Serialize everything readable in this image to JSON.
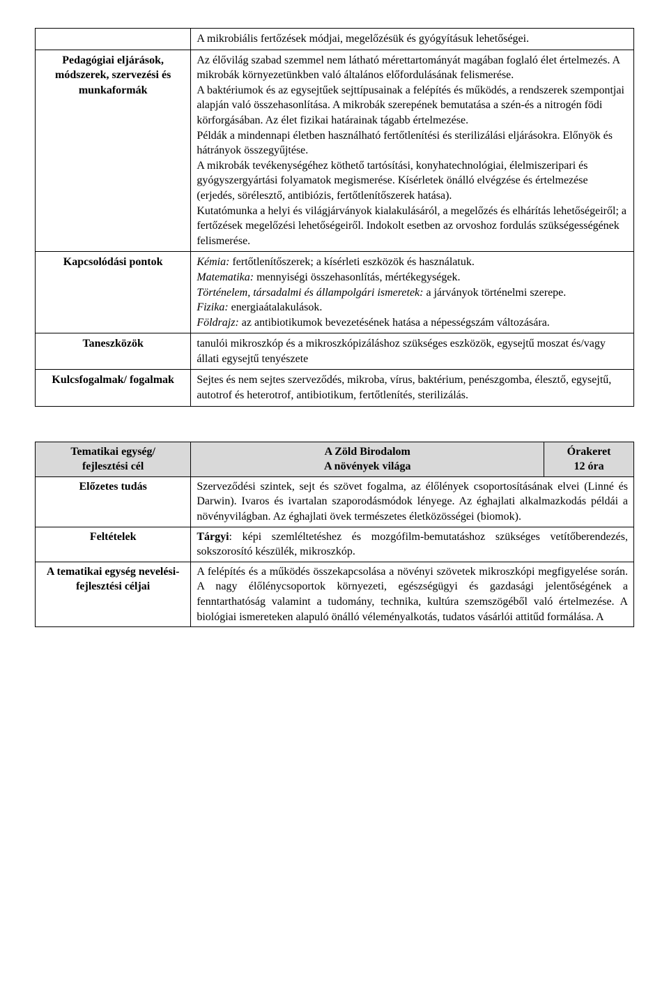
{
  "table1": {
    "row0": {
      "content": "A mikrobiális fertőzések módjai, megelőzésük és gyógyításuk lehetőségei."
    },
    "row1": {
      "label": "Pedagógiai eljárások, módszerek, szervezési és munkaformák",
      "p1": "Az élővilág szabad szemmel nem látható mérettartományát magában foglaló élet értelmezés. A mikrobák környezetünkben való általános előfordulásának felismerése.",
      "p2": "A baktériumok és az egysejtűek sejttípusainak a felépítés és működés, a rendszerek szempontjai alapján való összehasonlítása. A mikrobák szerepének bemutatása a szén-és a nitrogén födi körforgásában. Az élet fizikai határainak tágabb értelmezése.",
      "p3": "Példák a mindennapi életben használható fertőtlenítési és sterilizálási eljárásokra. Előnyök és hátrányok összegyűjtése.",
      "p4": "A mikrobák tevékenységéhez köthető tartósítási, konyhatechnológiai, élelmiszeripari és gyógyszergyártási folyamatok megismerése. Kísérletek önálló elvégzése és értelmezése (erjedés, sörélesztő, antibiózis, fertőtlenítőszerek hatása).",
      "p5": "Kutatómunka a helyi és világjárványok kialakulásáról, a megelőzés és elhárítás lehetőségeiről; a fertőzések megelőzési lehetőségeiről. Indokolt esetben az orvoshoz fordulás szükségességének felismerése."
    },
    "row2": {
      "label": "Kapcsolódási pontok",
      "kemia_lbl": "Kémia:",
      "kemia_txt": " fertőtlenítőszerek; a kísérleti eszközök és használatuk.",
      "mat_lbl": "Matematika:",
      "mat_txt": " mennyiségi összehasonlítás, mértékegységek.",
      "tort_lbl": "Történelem, társadalmi és állampolgári ismeretek:",
      "tort_txt": " a járványok történelmi szerepe.",
      "fiz_lbl": "Fizika:",
      "fiz_txt": " energiaátalakulások.",
      "foldr_lbl": "Földrajz:",
      "foldr_txt": " az antibiotikumok bevezetésének hatása a népességszám változására."
    },
    "row3": {
      "label": "Taneszközök",
      "content": "tanulói mikroszkóp és a mikroszkópizáláshoz szükséges eszközök, egysejtű moszat és/vagy állati egysejtű tenyészete"
    },
    "row4": {
      "label": "Kulcsfogalmak/ fogalmak",
      "content": "Sejtes és nem sejtes szerveződés, mikroba, vírus, baktérium, penészgomba, élesztő, egysejtű, autotrof és heterotrof, antibiotikum, fertőtlenítés, sterilizálás."
    }
  },
  "table2": {
    "header": {
      "col1a": "Tematikai egység/",
      "col1b": "fejlesztési cél",
      "col2a": "A Zöld Birodalom",
      "col2b": "A növények világa",
      "col3a": "Órakeret",
      "col3b": "12 óra"
    },
    "row1": {
      "label": "Előzetes tudás",
      "content": "Szerveződési szintek, sejt és szövet fogalma, az élőlények csoportosításának elvei (Linné és Darwin). Ivaros és ivartalan szaporodásmódok lényege. Az éghajlati alkalmazkodás példái a növényvilágban. Az éghajlati övek természetes életközösségei (biomok)."
    },
    "row2": {
      "label": "Feltételek",
      "prefix": "Tárgyi",
      "content": ": képi szemléltetéshez és mozgófilm-bemutatáshoz szükséges vetítőberendezés, sokszorosító készülék, mikroszkóp."
    },
    "row3": {
      "label": "A tematikai egység nevelési-fejlesztési céljai",
      "content": "A felépítés és a működés összekapcsolása a növényi szövetek mikroszkópi megfigyelése során. A nagy élőlénycsoportok környezeti, egészségügyi és gazdasági jelentőségének a fenntarthatóság valamint a tudomány, technika, kultúra szemszögéből való értelmezése. A biológiai ismereteken alapuló önálló véleményalkotás, tudatos vásárlói attitűd formálása. A"
    }
  }
}
